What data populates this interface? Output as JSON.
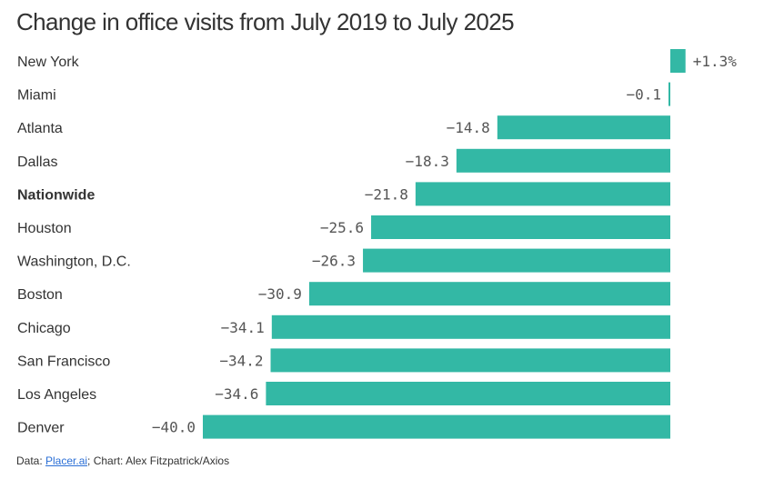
{
  "chart_data": {
    "type": "bar",
    "orientation": "horizontal",
    "title": "Change in office visits from July 2019 to July 2025",
    "xlabel": "",
    "ylabel": "",
    "unit": "%",
    "xlim": [
      -40,
      1.3
    ],
    "grid": false,
    "bar_color": "#33b8a5",
    "highlight_category": "Nationwide",
    "categories": [
      "New York",
      "Miami",
      "Atlanta",
      "Dallas",
      "Nationwide",
      "Houston",
      "Washington, D.C.",
      "Boston",
      "Chicago",
      "San Francisco",
      "Los Angeles",
      "Denver"
    ],
    "values": [
      1.3,
      -0.1,
      -14.8,
      -18.3,
      -21.8,
      -25.6,
      -26.3,
      -30.9,
      -34.1,
      -34.2,
      -34.6,
      -40.0
    ],
    "data_labels": [
      "+1.3%",
      "−0.1",
      "−14.8",
      "−18.3",
      "−21.8",
      "−25.6",
      "−26.3",
      "−30.9",
      "−34.1",
      "−34.2",
      "−34.6",
      "−40.0"
    ]
  },
  "footer": {
    "data_prefix": "Data: ",
    "source_link": "Placer.ai",
    "credit": "; Chart: Alex Fitzpatrick/Axios"
  }
}
